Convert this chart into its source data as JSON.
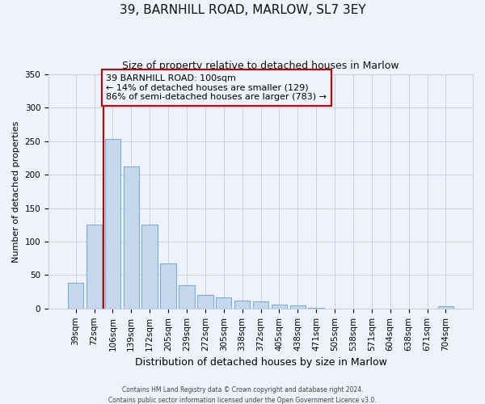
{
  "title": "39, BARNHILL ROAD, MARLOW, SL7 3EY",
  "subtitle": "Size of property relative to detached houses in Marlow",
  "xlabel": "Distribution of detached houses by size in Marlow",
  "ylabel": "Number of detached properties",
  "bar_labels": [
    "39sqm",
    "72sqm",
    "106sqm",
    "139sqm",
    "172sqm",
    "205sqm",
    "239sqm",
    "272sqm",
    "305sqm",
    "338sqm",
    "372sqm",
    "405sqm",
    "438sqm",
    "471sqm",
    "505sqm",
    "538sqm",
    "571sqm",
    "604sqm",
    "638sqm",
    "671sqm",
    "704sqm"
  ],
  "bar_values": [
    38,
    125,
    253,
    212,
    125,
    67,
    35,
    20,
    17,
    12,
    11,
    6,
    5,
    1,
    0,
    0,
    0,
    0,
    0,
    0,
    3
  ],
  "bar_color": "#c5d8ee",
  "bar_edge_color": "#7BAFD4",
  "vline_bar_index": 2,
  "vline_color": "#cc0000",
  "ylim": [
    0,
    350
  ],
  "yticks": [
    0,
    50,
    100,
    150,
    200,
    250,
    300,
    350
  ],
  "annotation_box_text": "39 BARNHILL ROAD: 100sqm\n← 14% of detached houses are smaller (129)\n86% of semi-detached houses are larger (783) →",
  "annotation_box_color": "#cc0000",
  "bg_color": "#eef2fa",
  "grid_color": "#c8d0e8",
  "title_fontsize": 11,
  "subtitle_fontsize": 9,
  "xlabel_fontsize": 9,
  "ylabel_fontsize": 8,
  "tick_fontsize": 7.5,
  "footer_line1": "Contains HM Land Registry data © Crown copyright and database right 2024.",
  "footer_line2": "Contains public sector information licensed under the Open Government Licence v3.0."
}
